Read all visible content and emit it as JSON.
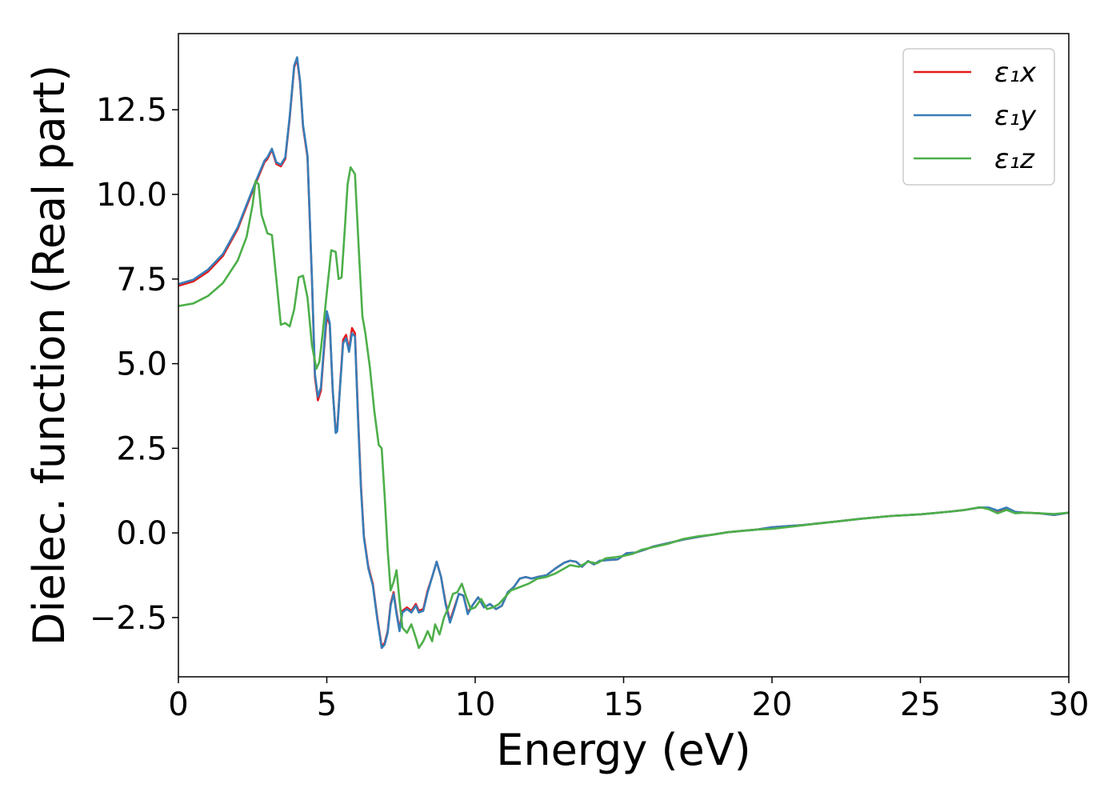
{
  "chart_data": {
    "type": "line",
    "title": "",
    "xlabel": "Energy (eV)",
    "ylabel": "Dielec. function (Real part)",
    "xlim": [
      0,
      30
    ],
    "ylim": [
      -4.25,
      14.75
    ],
    "xticks": [
      0,
      5,
      10,
      15,
      20,
      25,
      30
    ],
    "xtick_labels": [
      "0",
      "5",
      "10",
      "15",
      "20",
      "25",
      "30"
    ],
    "yticks": [
      -2.5,
      0,
      2.5,
      5,
      7.5,
      10,
      12.5
    ],
    "ytick_labels": [
      "−2.5",
      "0.0",
      "2.5",
      "5.0",
      "7.5",
      "10.0",
      "12.5"
    ],
    "grid": false,
    "legend_position": "top-right",
    "series": [
      {
        "name": "ε₁x",
        "color": "#e41a1c",
        "x": [
          0,
          0.5,
          1,
          1.5,
          2,
          2.3,
          2.6,
          2.9,
          3.0,
          3.15,
          3.3,
          3.45,
          3.6,
          3.75,
          3.9,
          4.0,
          4.1,
          4.2,
          4.35,
          4.5,
          4.6,
          4.7,
          4.8,
          4.9,
          5.0,
          5.1,
          5.2,
          5.3,
          5.35,
          5.45,
          5.55,
          5.65,
          5.75,
          5.85,
          5.95,
          6.05,
          6.15,
          6.25,
          6.4,
          6.55,
          6.7,
          6.85,
          6.95,
          7.05,
          7.15,
          7.25,
          7.35,
          7.45,
          7.55,
          7.7,
          7.85,
          8.0,
          8.1,
          8.25,
          8.4,
          8.55,
          8.7,
          8.85,
          9.0,
          9.15,
          9.3,
          9.45,
          9.6,
          9.75,
          9.9,
          10.1,
          10.3,
          10.5,
          10.7,
          10.9,
          11.1,
          11.3,
          11.5,
          11.7,
          11.9,
          12.1,
          12.4,
          12.7,
          13.0,
          13.2,
          13.4,
          13.6,
          13.8,
          14.0,
          14.2,
          14.5,
          14.8,
          15.1,
          15.4,
          15.7,
          16.0,
          16.5,
          17.0,
          17.5,
          18.0,
          18.5,
          19.0,
          19.5,
          20.0,
          20.5,
          21.0,
          22.0,
          23.0,
          24.0,
          25.0,
          26.0,
          26.5,
          27.0,
          27.3,
          27.6,
          27.9,
          28.2,
          28.5,
          29.0,
          29.5,
          30.0
        ],
        "y": [
          7.3,
          7.43,
          7.72,
          8.18,
          8.98,
          9.65,
          10.32,
          10.95,
          11.05,
          11.32,
          10.9,
          10.83,
          11.05,
          12.25,
          13.75,
          14.0,
          13.3,
          12.0,
          11.1,
          7.5,
          4.6,
          3.92,
          4.2,
          5.35,
          6.4,
          6.15,
          4.2,
          3.0,
          3.05,
          4.4,
          5.7,
          5.85,
          5.4,
          6.05,
          5.9,
          3.5,
          1.4,
          -0.1,
          -1.0,
          -1.5,
          -2.5,
          -3.35,
          -3.25,
          -2.9,
          -2.1,
          -1.75,
          -2.35,
          -2.85,
          -2.3,
          -2.2,
          -2.3,
          -2.1,
          -2.3,
          -2.25,
          -1.7,
          -1.3,
          -0.85,
          -1.3,
          -2.05,
          -2.6,
          -2.2,
          -1.8,
          -1.85,
          -2.35,
          -2.15,
          -1.9,
          -2.2,
          -2.1,
          -2.25,
          -2.15,
          -1.75,
          -1.6,
          -1.35,
          -1.3,
          -1.35,
          -1.3,
          -1.25,
          -1.05,
          -0.88,
          -0.82,
          -0.85,
          -1.0,
          -0.83,
          -0.93,
          -0.82,
          -0.8,
          -0.78,
          -0.6,
          -0.58,
          -0.5,
          -0.4,
          -0.3,
          -0.2,
          -0.12,
          -0.05,
          0.02,
          0.06,
          0.1,
          0.17,
          0.2,
          0.23,
          0.32,
          0.42,
          0.5,
          0.55,
          0.63,
          0.68,
          0.75,
          0.74,
          0.65,
          0.73,
          0.62,
          0.6,
          0.58,
          0.53,
          0.6
        ]
      },
      {
        "name": "ε₁y",
        "color": "#377eb8",
        "x": [
          0,
          0.5,
          1,
          1.5,
          2,
          2.3,
          2.6,
          2.9,
          3.0,
          3.15,
          3.3,
          3.45,
          3.6,
          3.75,
          3.9,
          4.0,
          4.1,
          4.2,
          4.35,
          4.5,
          4.6,
          4.7,
          4.8,
          4.9,
          5.0,
          5.1,
          5.2,
          5.3,
          5.35,
          5.45,
          5.55,
          5.65,
          5.75,
          5.85,
          5.95,
          6.05,
          6.15,
          6.25,
          6.4,
          6.55,
          6.7,
          6.85,
          6.95,
          7.05,
          7.15,
          7.25,
          7.35,
          7.45,
          7.55,
          7.7,
          7.85,
          8.0,
          8.1,
          8.25,
          8.4,
          8.55,
          8.7,
          8.85,
          9.0,
          9.15,
          9.3,
          9.45,
          9.6,
          9.75,
          9.9,
          10.1,
          10.3,
          10.5,
          10.7,
          10.9,
          11.1,
          11.3,
          11.5,
          11.7,
          11.9,
          12.1,
          12.4,
          12.7,
          13.0,
          13.2,
          13.4,
          13.6,
          13.8,
          14.0,
          14.2,
          14.5,
          14.8,
          15.1,
          15.4,
          15.7,
          16.0,
          16.5,
          17.0,
          17.5,
          18.0,
          18.5,
          19.0,
          19.5,
          20.0,
          20.5,
          21.0,
          22.0,
          23.0,
          24.0,
          25.0,
          26.0,
          26.5,
          27.0,
          27.3,
          27.6,
          27.9,
          28.2,
          28.5,
          29.0,
          29.5,
          30.0
        ],
        "y": [
          7.35,
          7.48,
          7.78,
          8.24,
          9.03,
          9.7,
          10.37,
          11.0,
          11.1,
          11.35,
          10.95,
          10.88,
          11.1,
          12.3,
          13.8,
          14.05,
          13.35,
          12.05,
          11.15,
          7.55,
          4.7,
          4.02,
          4.3,
          5.45,
          6.55,
          6.2,
          4.25,
          2.95,
          3.0,
          4.35,
          5.6,
          5.75,
          5.35,
          5.9,
          5.8,
          3.4,
          1.3,
          -0.15,
          -1.05,
          -1.55,
          -2.55,
          -3.4,
          -3.3,
          -2.95,
          -2.15,
          -1.8,
          -2.4,
          -2.9,
          -2.35,
          -2.25,
          -2.35,
          -2.15,
          -2.35,
          -2.3,
          -1.75,
          -1.3,
          -0.85,
          -1.3,
          -2.1,
          -2.65,
          -2.25,
          -1.8,
          -1.85,
          -2.4,
          -2.15,
          -1.9,
          -2.2,
          -2.1,
          -2.25,
          -2.15,
          -1.75,
          -1.6,
          -1.35,
          -1.3,
          -1.35,
          -1.3,
          -1.25,
          -1.05,
          -0.88,
          -0.82,
          -0.85,
          -1.0,
          -0.83,
          -0.93,
          -0.82,
          -0.8,
          -0.78,
          -0.6,
          -0.58,
          -0.5,
          -0.4,
          -0.3,
          -0.2,
          -0.12,
          -0.05,
          0.02,
          0.06,
          0.1,
          0.17,
          0.2,
          0.23,
          0.32,
          0.42,
          0.5,
          0.55,
          0.63,
          0.68,
          0.75,
          0.75,
          0.66,
          0.75,
          0.62,
          0.6,
          0.58,
          0.53,
          0.6
        ]
      },
      {
        "name": "ε₁z",
        "color": "#4daf4a",
        "x": [
          0,
          0.5,
          1,
          1.5,
          2,
          2.3,
          2.5,
          2.6,
          2.7,
          2.8,
          3.0,
          3.15,
          3.3,
          3.45,
          3.6,
          3.75,
          3.9,
          4.05,
          4.2,
          4.35,
          4.5,
          4.65,
          4.75,
          4.85,
          5.0,
          5.15,
          5.3,
          5.4,
          5.5,
          5.6,
          5.7,
          5.8,
          5.95,
          6.1,
          6.2,
          6.3,
          6.45,
          6.6,
          6.75,
          6.85,
          6.95,
          7.05,
          7.15,
          7.25,
          7.35,
          7.45,
          7.55,
          7.7,
          7.85,
          8.0,
          8.1,
          8.25,
          8.4,
          8.55,
          8.65,
          8.8,
          8.95,
          9.1,
          9.25,
          9.4,
          9.55,
          9.7,
          9.85,
          10.0,
          10.2,
          10.4,
          10.6,
          10.8,
          11.0,
          11.2,
          11.5,
          11.8,
          12.1,
          12.4,
          12.7,
          13.0,
          13.2,
          13.5,
          13.8,
          14.1,
          14.4,
          14.7,
          15.0,
          15.3,
          15.6,
          16.0,
          16.5,
          17.0,
          17.5,
          18.0,
          18.5,
          19.0,
          19.5,
          20.0,
          20.5,
          21.0,
          22.0,
          23.0,
          24.0,
          25.0,
          26.0,
          26.5,
          27.0,
          27.3,
          27.6,
          27.9,
          28.2,
          28.5,
          29.0,
          29.5,
          30.0
        ],
        "y": [
          6.7,
          6.78,
          7.0,
          7.38,
          8.05,
          8.75,
          9.7,
          10.4,
          10.3,
          9.4,
          8.85,
          8.8,
          7.5,
          6.15,
          6.2,
          6.1,
          6.6,
          7.55,
          7.6,
          6.95,
          5.55,
          4.85,
          5.05,
          5.8,
          7.1,
          8.35,
          8.3,
          7.5,
          7.55,
          8.9,
          10.3,
          10.8,
          10.6,
          8.0,
          6.4,
          5.9,
          4.9,
          3.6,
          2.6,
          2.5,
          1.1,
          -0.5,
          -1.7,
          -1.45,
          -1.1,
          -2.0,
          -2.8,
          -2.95,
          -2.7,
          -3.1,
          -3.4,
          -3.2,
          -2.9,
          -3.2,
          -2.7,
          -3.0,
          -2.5,
          -2.2,
          -1.8,
          -1.75,
          -1.5,
          -1.9,
          -2.25,
          -2.2,
          -1.95,
          -2.25,
          -2.2,
          -2.1,
          -1.9,
          -1.7,
          -1.6,
          -1.5,
          -1.35,
          -1.3,
          -1.2,
          -1.05,
          -0.95,
          -1.0,
          -0.85,
          -0.9,
          -0.75,
          -0.72,
          -0.68,
          -0.62,
          -0.5,
          -0.42,
          -0.32,
          -0.18,
          -0.1,
          -0.05,
          0.02,
          0.06,
          0.1,
          0.12,
          0.17,
          0.22,
          0.32,
          0.42,
          0.5,
          0.55,
          0.63,
          0.68,
          0.76,
          0.7,
          0.58,
          0.68,
          0.58,
          0.6,
          0.58,
          0.56,
          0.6
        ]
      }
    ]
  }
}
